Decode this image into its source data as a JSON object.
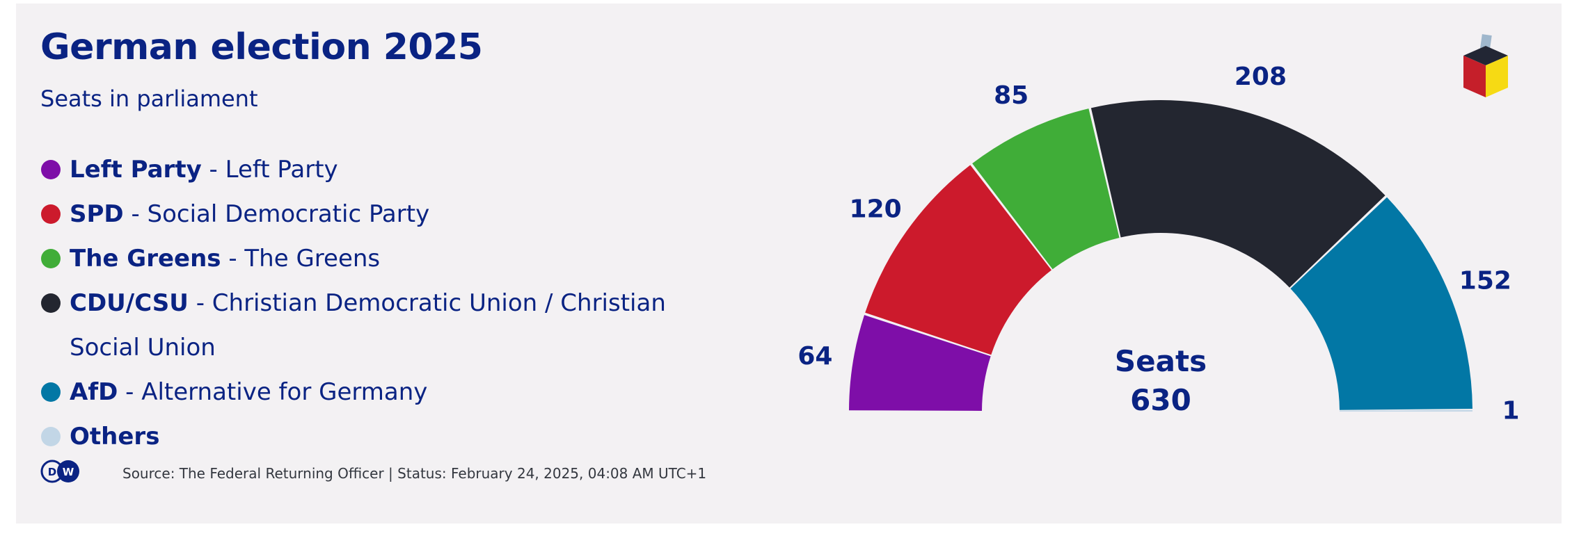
{
  "title": "German election 2025",
  "subtitle": "Seats in parliament",
  "legend": [
    {
      "abbr": "Left Party",
      "name": " - Left Party",
      "color": "#7e0ea8"
    },
    {
      "abbr": "SPD",
      "name": " - Social Democratic Party",
      "color": "#cc1a2c"
    },
    {
      "abbr": "The Greens",
      "name": " - The Greens",
      "color": "#40ad38"
    },
    {
      "abbr": "CDU/CSU",
      "name": " - Christian Democratic Union / Christian Social Union",
      "color": "#232630"
    },
    {
      "abbr": "AfD",
      "name": " - Alternative for Germany",
      "color": "#0277a5"
    },
    {
      "abbr": "Others",
      "name": "",
      "color": "#c2d6e6"
    }
  ],
  "source": "Source: The Federal Returning Officer | Status: February 24, 2025, 04:08 AM UTC+1",
  "logo_text": "DW",
  "icons": {
    "brand": "dw-logo-icon",
    "ballot": "ballot-box-icon"
  },
  "chart_data": {
    "type": "pie",
    "subtype": "semicircle-parliament",
    "title": "German election 2025",
    "subtitle": "Seats in parliament",
    "total_label": "Seats",
    "total": 630,
    "categories": [
      "Left Party",
      "SPD",
      "The Greens",
      "CDU/CSU",
      "AfD",
      "Others"
    ],
    "values": [
      64,
      120,
      85,
      208,
      152,
      1
    ],
    "labels": [
      "64",
      "120",
      "85",
      "208",
      "152",
      "1"
    ],
    "colors": [
      "#7e0ea8",
      "#cc1a2c",
      "#40ad38",
      "#232630",
      "#0277a5",
      "#c2d6e6"
    ]
  }
}
